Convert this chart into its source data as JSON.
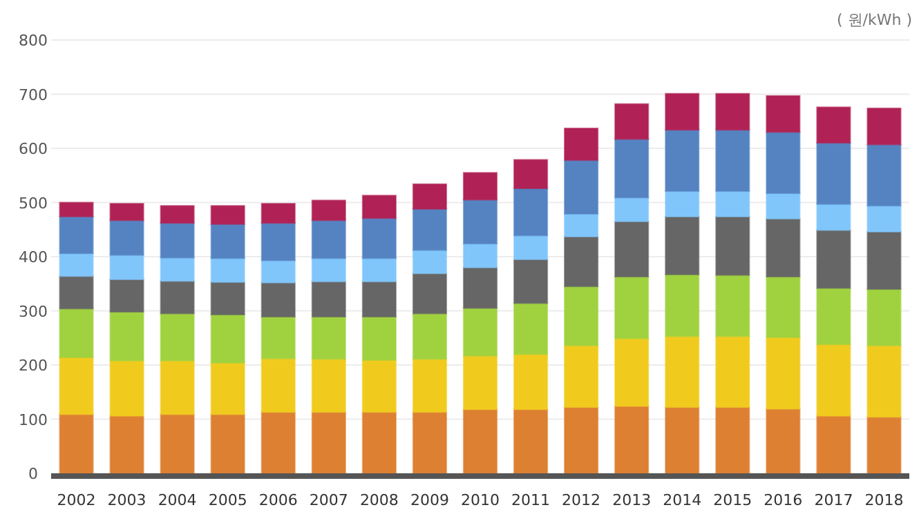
{
  "chart_data": {
    "type": "bar",
    "stacked": true,
    "ylabel": "( 원/kWh )",
    "grid": "y",
    "categories": [
      "2002",
      "2003",
      "2004",
      "2005",
      "2006",
      "2007",
      "2008",
      "2009",
      "2010",
      "2011",
      "2012",
      "2013",
      "2014",
      "2015",
      "2016",
      "2017",
      "2018"
    ],
    "ylim": [
      0,
      800
    ],
    "yticks": [
      0,
      100,
      200,
      300,
      400,
      500,
      600,
      700,
      800
    ],
    "series": [
      {
        "color": "#dd8032",
        "values": [
          109,
          106,
          109,
          109,
          113,
          113,
          113,
          113,
          118,
          118,
          122,
          124,
          122,
          122,
          119,
          106,
          104
        ]
      },
      {
        "color": "#f0cb1e",
        "values": [
          105,
          102,
          99,
          95,
          99,
          98,
          96,
          98,
          99,
          102,
          114,
          125,
          131,
          131,
          132,
          132,
          132
        ]
      },
      {
        "color": "#a0d23f",
        "values": [
          90,
          90,
          87,
          89,
          77,
          78,
          80,
          84,
          88,
          94,
          109,
          114,
          114,
          113,
          112,
          104,
          104
        ]
      },
      {
        "color": "#666666",
        "values": [
          60,
          60,
          60,
          60,
          63,
          65,
          65,
          74,
          75,
          81,
          92,
          102,
          107,
          108,
          107,
          107,
          106
        ]
      },
      {
        "color": "#80c6fb",
        "values": [
          42,
          45,
          43,
          44,
          41,
          43,
          43,
          43,
          44,
          44,
          42,
          44,
          47,
          47,
          47,
          48,
          48
        ]
      },
      {
        "color": "#5583c2",
        "values": [
          68,
          64,
          64,
          63,
          69,
          70,
          74,
          76,
          81,
          87,
          99,
          108,
          113,
          113,
          113,
          113,
          113
        ]
      },
      {
        "color": "#b02255",
        "values": [
          26,
          31,
          32,
          34,
          36,
          37,
          42,
          46,
          50,
          53,
          59,
          65,
          67,
          67,
          67,
          66,
          67
        ]
      }
    ]
  }
}
